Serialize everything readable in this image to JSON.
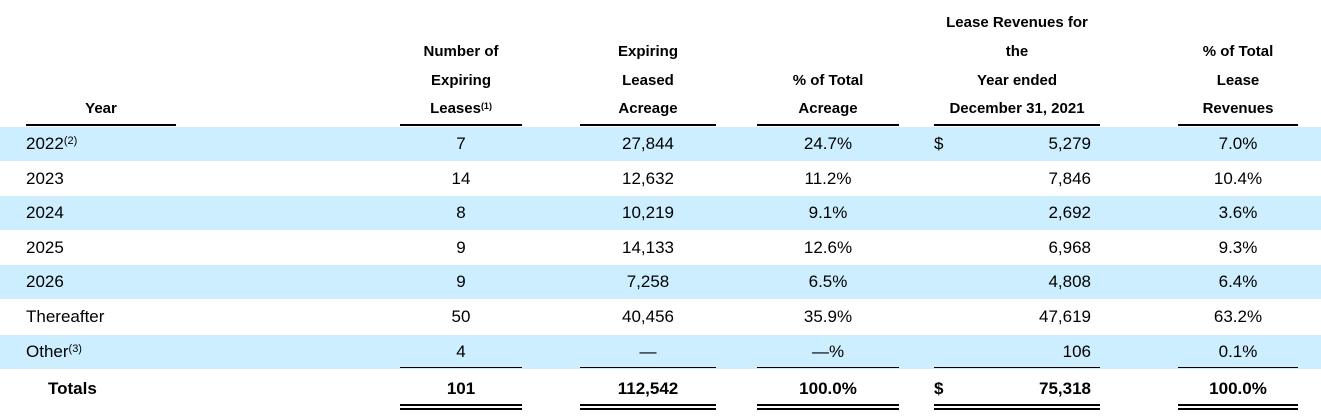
{
  "headers": {
    "year": [
      "Year"
    ],
    "num_leases": [
      "Number of",
      "Expiring",
      "Leases"
    ],
    "num_leases_fn": "(1)",
    "acreage": [
      "Expiring",
      "Leased",
      "Acreage"
    ],
    "pct_acreage": [
      "% of Total",
      "Acreage"
    ],
    "revenues": [
      "Lease Revenues for",
      "the",
      "Year ended",
      "December 31, 2021"
    ],
    "pct_revenues": [
      "% of Total",
      "Lease",
      "Revenues"
    ]
  },
  "rows": [
    {
      "year": "2022",
      "fn": "(2)",
      "num": "7",
      "acreage": "27,844",
      "pct": "24.7%",
      "dollar": "$",
      "rev": "5,279",
      "revpct": "7.0%"
    },
    {
      "year": "2023",
      "fn": "",
      "num": "14",
      "acreage": "12,632",
      "pct": "11.2%",
      "dollar": "",
      "rev": "7,846",
      "revpct": "10.4%"
    },
    {
      "year": "2024",
      "fn": "",
      "num": "8",
      "acreage": "10,219",
      "pct": "9.1%",
      "dollar": "",
      "rev": "2,692",
      "revpct": "3.6%"
    },
    {
      "year": "2025",
      "fn": "",
      "num": "9",
      "acreage": "14,133",
      "pct": "12.6%",
      "dollar": "",
      "rev": "6,968",
      "revpct": "9.3%"
    },
    {
      "year": "2026",
      "fn": "",
      "num": "9",
      "acreage": "7,258",
      "pct": "6.5%",
      "dollar": "",
      "rev": "4,808",
      "revpct": "6.4%"
    },
    {
      "year": "Thereafter",
      "fn": "",
      "num": "50",
      "acreage": "40,456",
      "pct": "35.9%",
      "dollar": "",
      "rev": "47,619",
      "revpct": "63.2%"
    },
    {
      "year": "Other",
      "fn": "(3)",
      "num": "4",
      "acreage": "—",
      "pct": "—%",
      "dollar": "",
      "rev": "106",
      "revpct": "0.1%"
    }
  ],
  "totals": {
    "label": "Totals",
    "num": "101",
    "acreage": "112,542",
    "pct": "100.0%",
    "dollar": "$",
    "rev": "75,318",
    "revpct": "100.0%"
  }
}
